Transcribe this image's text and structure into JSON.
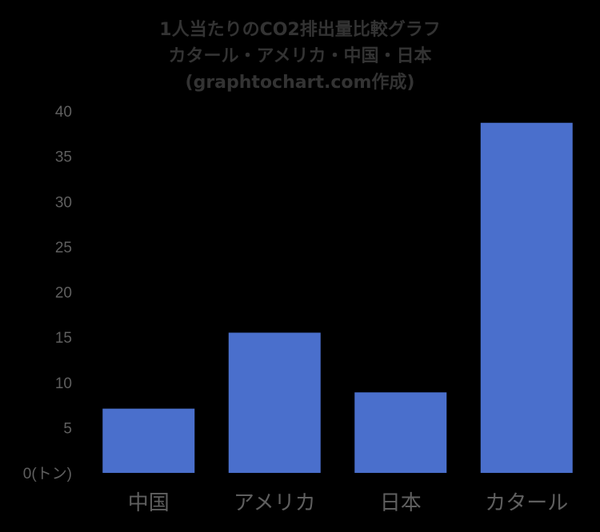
{
  "chart_data": {
    "type": "bar",
    "title_lines": [
      "1人当たりのCO2排出量比較グラフ",
      "カタール・アメリカ・中国・日本",
      "(graphtochart.com作成)"
    ],
    "categories": [
      "中国",
      "アメリカ",
      "日本",
      "カタール"
    ],
    "values": [
      7.1,
      15.5,
      8.9,
      38.7
    ],
    "ylim": [
      0,
      40
    ],
    "y_ticks": [
      {
        "value": 0,
        "label": "0(トン)"
      },
      {
        "value": 5,
        "label": "5"
      },
      {
        "value": 10,
        "label": "10"
      },
      {
        "value": 15,
        "label": "15"
      },
      {
        "value": 20,
        "label": "20"
      },
      {
        "value": 25,
        "label": "25"
      },
      {
        "value": 30,
        "label": "30"
      },
      {
        "value": 35,
        "label": "35"
      },
      {
        "value": 40,
        "label": "40"
      }
    ],
    "grid": false,
    "legend": "none",
    "colors": {
      "background": "#000000",
      "bar": "#4a6fcc",
      "text": "#5f5f5f",
      "title": "#333333"
    }
  }
}
